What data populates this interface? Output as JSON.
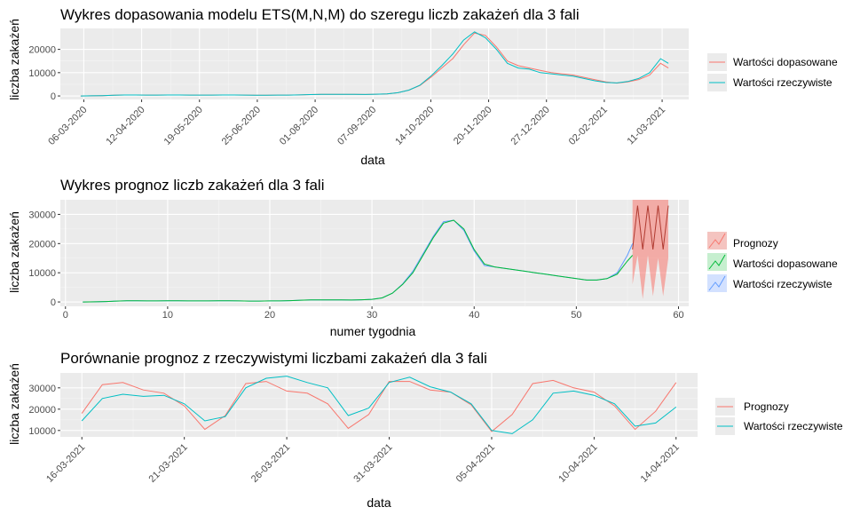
{
  "chart_data": [
    {
      "type": "line",
      "title": "Wykres dopasowania modelu ETS(M,N,M) do szeregu liczb zakażeń dla 3 fali",
      "xlabel": "data",
      "ylabel": "liczba zakażeń",
      "x_tick_labels": [
        "06-03-2020",
        "12-04-2020",
        "19-05-2020",
        "25-06-2020",
        "01-08-2020",
        "07-09-2020",
        "14-10-2020",
        "20-11-2020",
        "27-12-2020",
        "02-02-2021",
        "11-03-2021"
      ],
      "y_tick_labels": [
        "0",
        "10000",
        "20000"
      ],
      "ylim": [
        -1500,
        29000
      ],
      "grid": true,
      "legend_position": "right",
      "series": [
        {
          "name": "Wartości dopasowane",
          "color": "#F8766D"
        },
        {
          "name": "Wartości rzeczywiste",
          "color": "#00BFC4"
        }
      ],
      "x": [
        "2020-03-04",
        "2020-03-11",
        "2020-03-18",
        "2020-03-25",
        "2020-04-01",
        "2020-04-08",
        "2020-04-15",
        "2020-04-22",
        "2020-04-29",
        "2020-05-06",
        "2020-05-13",
        "2020-05-20",
        "2020-05-27",
        "2020-06-03",
        "2020-06-10",
        "2020-06-17",
        "2020-06-24",
        "2020-07-01",
        "2020-07-08",
        "2020-07-15",
        "2020-07-22",
        "2020-07-29",
        "2020-08-05",
        "2020-08-12",
        "2020-08-19",
        "2020-08-26",
        "2020-09-02",
        "2020-09-09",
        "2020-09-16",
        "2020-09-23",
        "2020-09-30",
        "2020-10-07",
        "2020-10-14",
        "2020-10-21",
        "2020-10-28",
        "2020-11-04",
        "2020-11-11",
        "2020-11-18",
        "2020-11-25",
        "2020-12-02",
        "2020-12-09",
        "2020-12-16",
        "2020-12-23",
        "2020-12-30",
        "2021-01-06",
        "2021-01-13",
        "2021-01-20",
        "2021-01-27",
        "2021-02-03",
        "2021-02-10",
        "2021-02-17",
        "2021-02-24",
        "2021-03-03",
        "2021-03-10",
        "2021-03-15"
      ],
      "fitted": [
        0,
        50,
        150,
        300,
        400,
        400,
        350,
        350,
        400,
        400,
        350,
        350,
        350,
        400,
        400,
        350,
        300,
        300,
        350,
        350,
        450,
        600,
        700,
        700,
        700,
        700,
        650,
        750,
        900,
        1400,
        2500,
        4500,
        8000,
        12000,
        16000,
        22000,
        27000,
        26000,
        21000,
        15000,
        13000,
        12000,
        11000,
        10000,
        9500,
        9000,
        8000,
        7000,
        6000,
        5500,
        6000,
        7000,
        9000,
        14000,
        12000
      ],
      "actual": [
        0,
        50,
        150,
        300,
        400,
        400,
        350,
        350,
        400,
        400,
        350,
        350,
        350,
        400,
        400,
        350,
        300,
        300,
        350,
        350,
        450,
        600,
        700,
        700,
        700,
        700,
        650,
        750,
        900,
        1400,
        2500,
        4600,
        8500,
        13000,
        18000,
        24000,
        27500,
        25000,
        20000,
        14000,
        12000,
        11500,
        10000,
        9500,
        9000,
        8500,
        7500,
        6500,
        5800,
        5600,
        6200,
        7500,
        10000,
        16000,
        14000
      ]
    },
    {
      "type": "line",
      "title": "Wykres prognoz liczb zakażeń dla 3 fali",
      "xlabel": "numer tygodnia",
      "ylabel": "liczba zakażeń",
      "x_tick_labels": [
        "0",
        "10",
        "20",
        "30",
        "40",
        "50",
        "60"
      ],
      "y_tick_labels": [
        "0",
        "10000",
        "20000",
        "30000"
      ],
      "xlim": [
        -0.5,
        61
      ],
      "ylim": [
        -1500,
        35000
      ],
      "grid": true,
      "legend_position": "right",
      "series": [
        {
          "name": "Prognozy",
          "color": "#F8766D"
        },
        {
          "name": "Wartości dopasowane",
          "color": "#00BA38"
        },
        {
          "name": "Wartości rzeczywiste",
          "color": "#619CFF"
        }
      ],
      "x": [
        1.7,
        3,
        4,
        5,
        6,
        7,
        8,
        9,
        10,
        11,
        12,
        13,
        14,
        15,
        16,
        17,
        18,
        19,
        20,
        21,
        22,
        23,
        24,
        25,
        26,
        27,
        28,
        29,
        30,
        31,
        32,
        33,
        34,
        35,
        36,
        37,
        38,
        39,
        40,
        41,
        42,
        43,
        44,
        45,
        46,
        47,
        48,
        49,
        50,
        51,
        52,
        53,
        54,
        55,
        55.5
      ],
      "fitted": [
        0,
        50,
        150,
        300,
        400,
        400,
        350,
        350,
        400,
        400,
        350,
        350,
        350,
        400,
        400,
        350,
        300,
        300,
        350,
        350,
        450,
        600,
        700,
        700,
        700,
        700,
        650,
        750,
        900,
        1400,
        3000,
        6000,
        10000,
        16000,
        22000,
        27000,
        28000,
        25000,
        18000,
        13000,
        12000,
        11500,
        11000,
        10500,
        10000,
        9500,
        9000,
        8500,
        8000,
        7500,
        7500,
        8000,
        9500,
        14000,
        16000
      ],
      "actual": [
        0,
        50,
        150,
        300,
        400,
        400,
        350,
        350,
        400,
        400,
        350,
        350,
        350,
        400,
        400,
        350,
        300,
        300,
        350,
        350,
        450,
        600,
        700,
        700,
        700,
        700,
        650,
        750,
        900,
        1400,
        3000,
        6200,
        10500,
        16500,
        22500,
        27500,
        28000,
        24500,
        17500,
        12500,
        12000,
        11500,
        11000,
        10500,
        10000,
        9500,
        9000,
        8500,
        8000,
        7500,
        7500,
        8000,
        10000,
        16000,
        20000
      ],
      "forecast_x": [
        55.5,
        56,
        56.5,
        57,
        57.5,
        58,
        58.5,
        59
      ],
      "forecast": [
        18000,
        33000,
        18000,
        33000,
        18000,
        33000,
        18000,
        33000
      ],
      "forecast_lower": [
        6000,
        16000,
        1000,
        16000,
        2000,
        15000,
        2000,
        15000
      ],
      "forecast_upper": [
        35000,
        35000,
        35000,
        35000,
        35000,
        35000,
        35000,
        35000
      ]
    },
    {
      "type": "line",
      "title": "Porównanie prognoz z rzeczywistymi liczbami zakażeń dla 3 fali",
      "xlabel": "data",
      "ylabel": "liczba zakażeń",
      "x_tick_labels": [
        "16-03-2021",
        "21-03-2021",
        "26-03-2021",
        "31-03-2021",
        "05-04-2021",
        "10-04-2021",
        "14-04-2021"
      ],
      "y_tick_labels": [
        "10000",
        "20000",
        "30000"
      ],
      "ylim": [
        7000,
        37000
      ],
      "grid": true,
      "legend_position": "right",
      "series": [
        {
          "name": "Prognozy",
          "color": "#F8766D"
        },
        {
          "name": "Wartości rzeczywiste",
          "color": "#00BFC4"
        }
      ],
      "x": [
        "16-03-2021",
        "17-03-2021",
        "18-03-2021",
        "19-03-2021",
        "20-03-2021",
        "21-03-2021",
        "22-03-2021",
        "23-03-2021",
        "24-03-2021",
        "25-03-2021",
        "26-03-2021",
        "27-03-2021",
        "28-03-2021",
        "29-03-2021",
        "30-03-2021",
        "31-03-2021",
        "01-04-2021",
        "02-04-2021",
        "03-04-2021",
        "04-04-2021",
        "05-04-2021",
        "06-04-2021",
        "07-04-2021",
        "08-04-2021",
        "09-04-2021",
        "10-04-2021",
        "11-04-2021",
        "12-04-2021",
        "13-04-2021",
        "14-04-2021"
      ],
      "forecast": [
        18000,
        31500,
        32500,
        29000,
        27500,
        21500,
        10500,
        17000,
        32000,
        33000,
        28500,
        27500,
        22500,
        11000,
        17500,
        33000,
        33000,
        29000,
        28000,
        22000,
        9500,
        17500,
        32000,
        33500,
        30000,
        28000,
        21500,
        10500,
        19000,
        32500
      ],
      "actual": [
        14500,
        25000,
        27000,
        26000,
        26500,
        22500,
        14500,
        16500,
        30000,
        34500,
        35500,
        32500,
        30000,
        17000,
        20500,
        32500,
        35000,
        30500,
        28000,
        22500,
        10000,
        8500,
        15000,
        27500,
        28500,
        26500,
        22500,
        12000,
        13500,
        21000
      ]
    }
  ]
}
